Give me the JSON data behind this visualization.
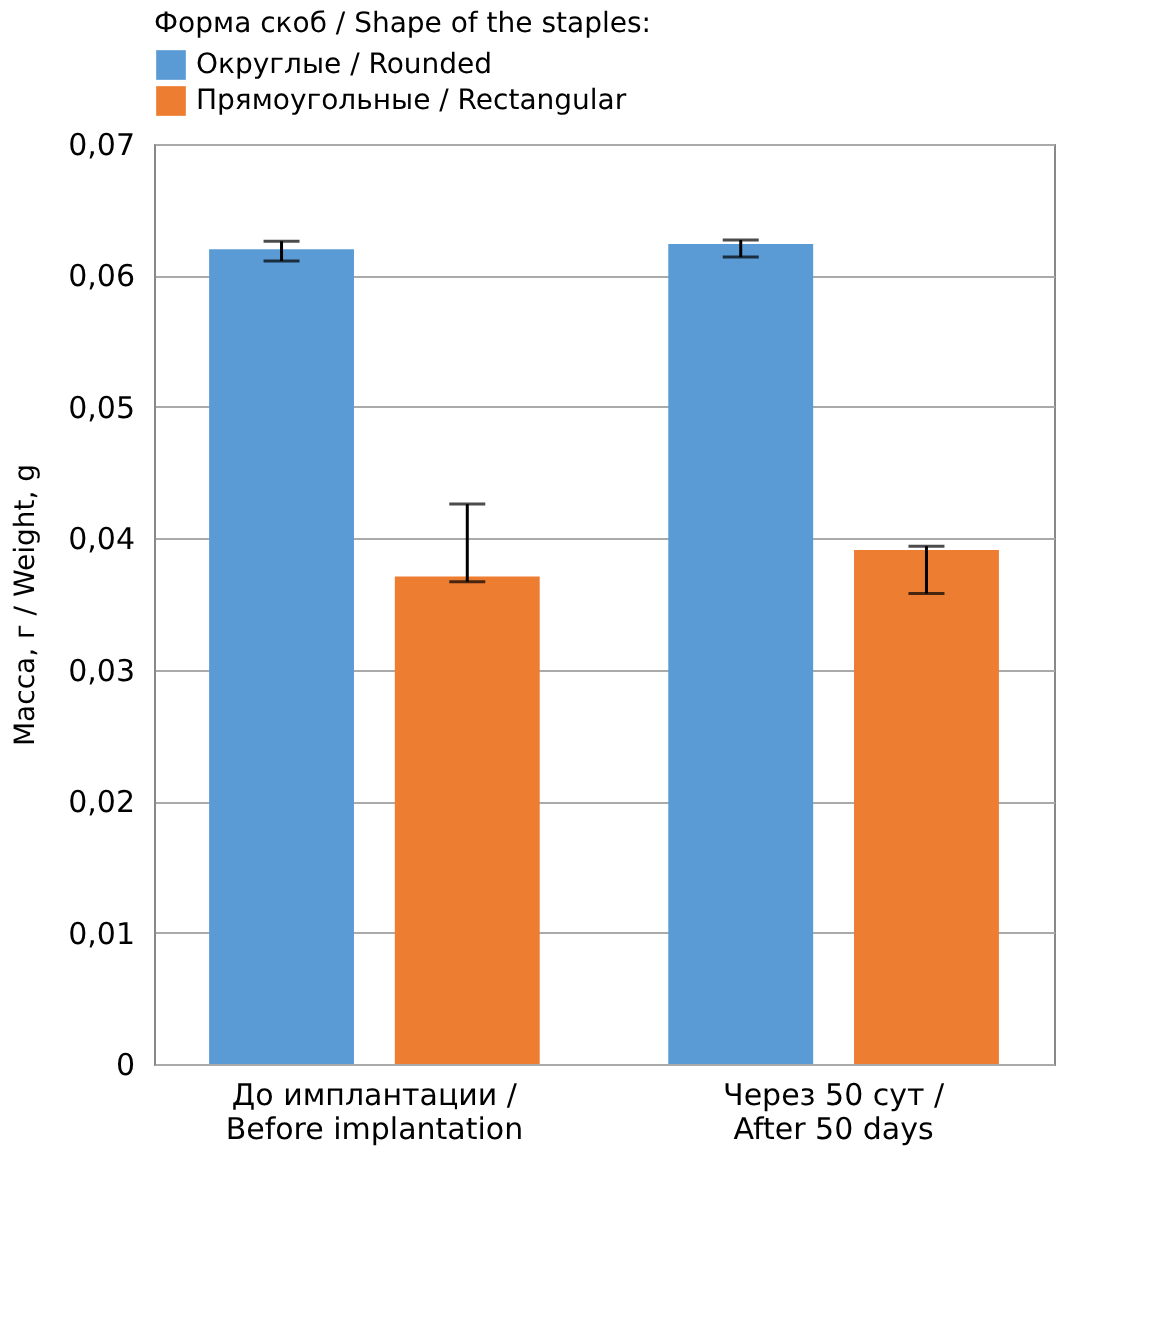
{
  "chart_data": {
    "type": "bar",
    "legend_title": "Форма скоб / Shape of the staples:",
    "ylabel": "Масса, г / Weight, g",
    "categories": [
      "До имплантации /\nBefore implantation",
      "Через 50 сут /\nAfter 50 days"
    ],
    "series": [
      {
        "name": "Округлые / Rounded",
        "color": "#5b9bd5",
        "values": [
          0.062,
          0.0624
        ],
        "errors": [
          [
            0.0611,
            0.0626
          ],
          [
            0.0614,
            0.0627
          ]
        ]
      },
      {
        "name": "Прямоугольные / Rectangular",
        "color": "#ed7d31",
        "values": [
          0.0371,
          0.0391
        ],
        "errors": [
          [
            0.0367,
            0.0426
          ],
          [
            0.0358,
            0.0394
          ]
        ]
      }
    ],
    "ylim": [
      0,
      0.07
    ],
    "yticks": [
      {
        "value": 0,
        "label": "0"
      },
      {
        "value": 0.01,
        "label": "0,01"
      },
      {
        "value": 0.02,
        "label": "0,02"
      },
      {
        "value": 0.03,
        "label": "0,03"
      },
      {
        "value": 0.04,
        "label": "0,04"
      },
      {
        "value": 0.05,
        "label": "0,05"
      },
      {
        "value": 0.06,
        "label": "0,06"
      },
      {
        "value": 0.07,
        "label": "0,07"
      }
    ],
    "grid": "y",
    "legend": "top"
  }
}
